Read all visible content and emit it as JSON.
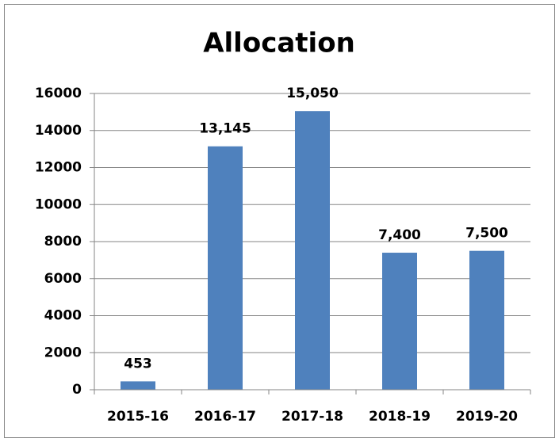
{
  "chart_data": {
    "type": "bar",
    "title": "Allocation",
    "categories": [
      "2015-16",
      "2016-17",
      "2017-18",
      "2018-19",
      "2019-20"
    ],
    "values": [
      453,
      13145,
      15050,
      7400,
      7500
    ],
    "value_labels": [
      "453",
      "13,145",
      "15,050",
      "7,400",
      "7,500"
    ],
    "color": "#4f81bd",
    "ylim": [
      0,
      16000
    ],
    "yticks": [
      0,
      2000,
      4000,
      6000,
      8000,
      10000,
      12000,
      14000,
      16000
    ],
    "grid": true
  }
}
